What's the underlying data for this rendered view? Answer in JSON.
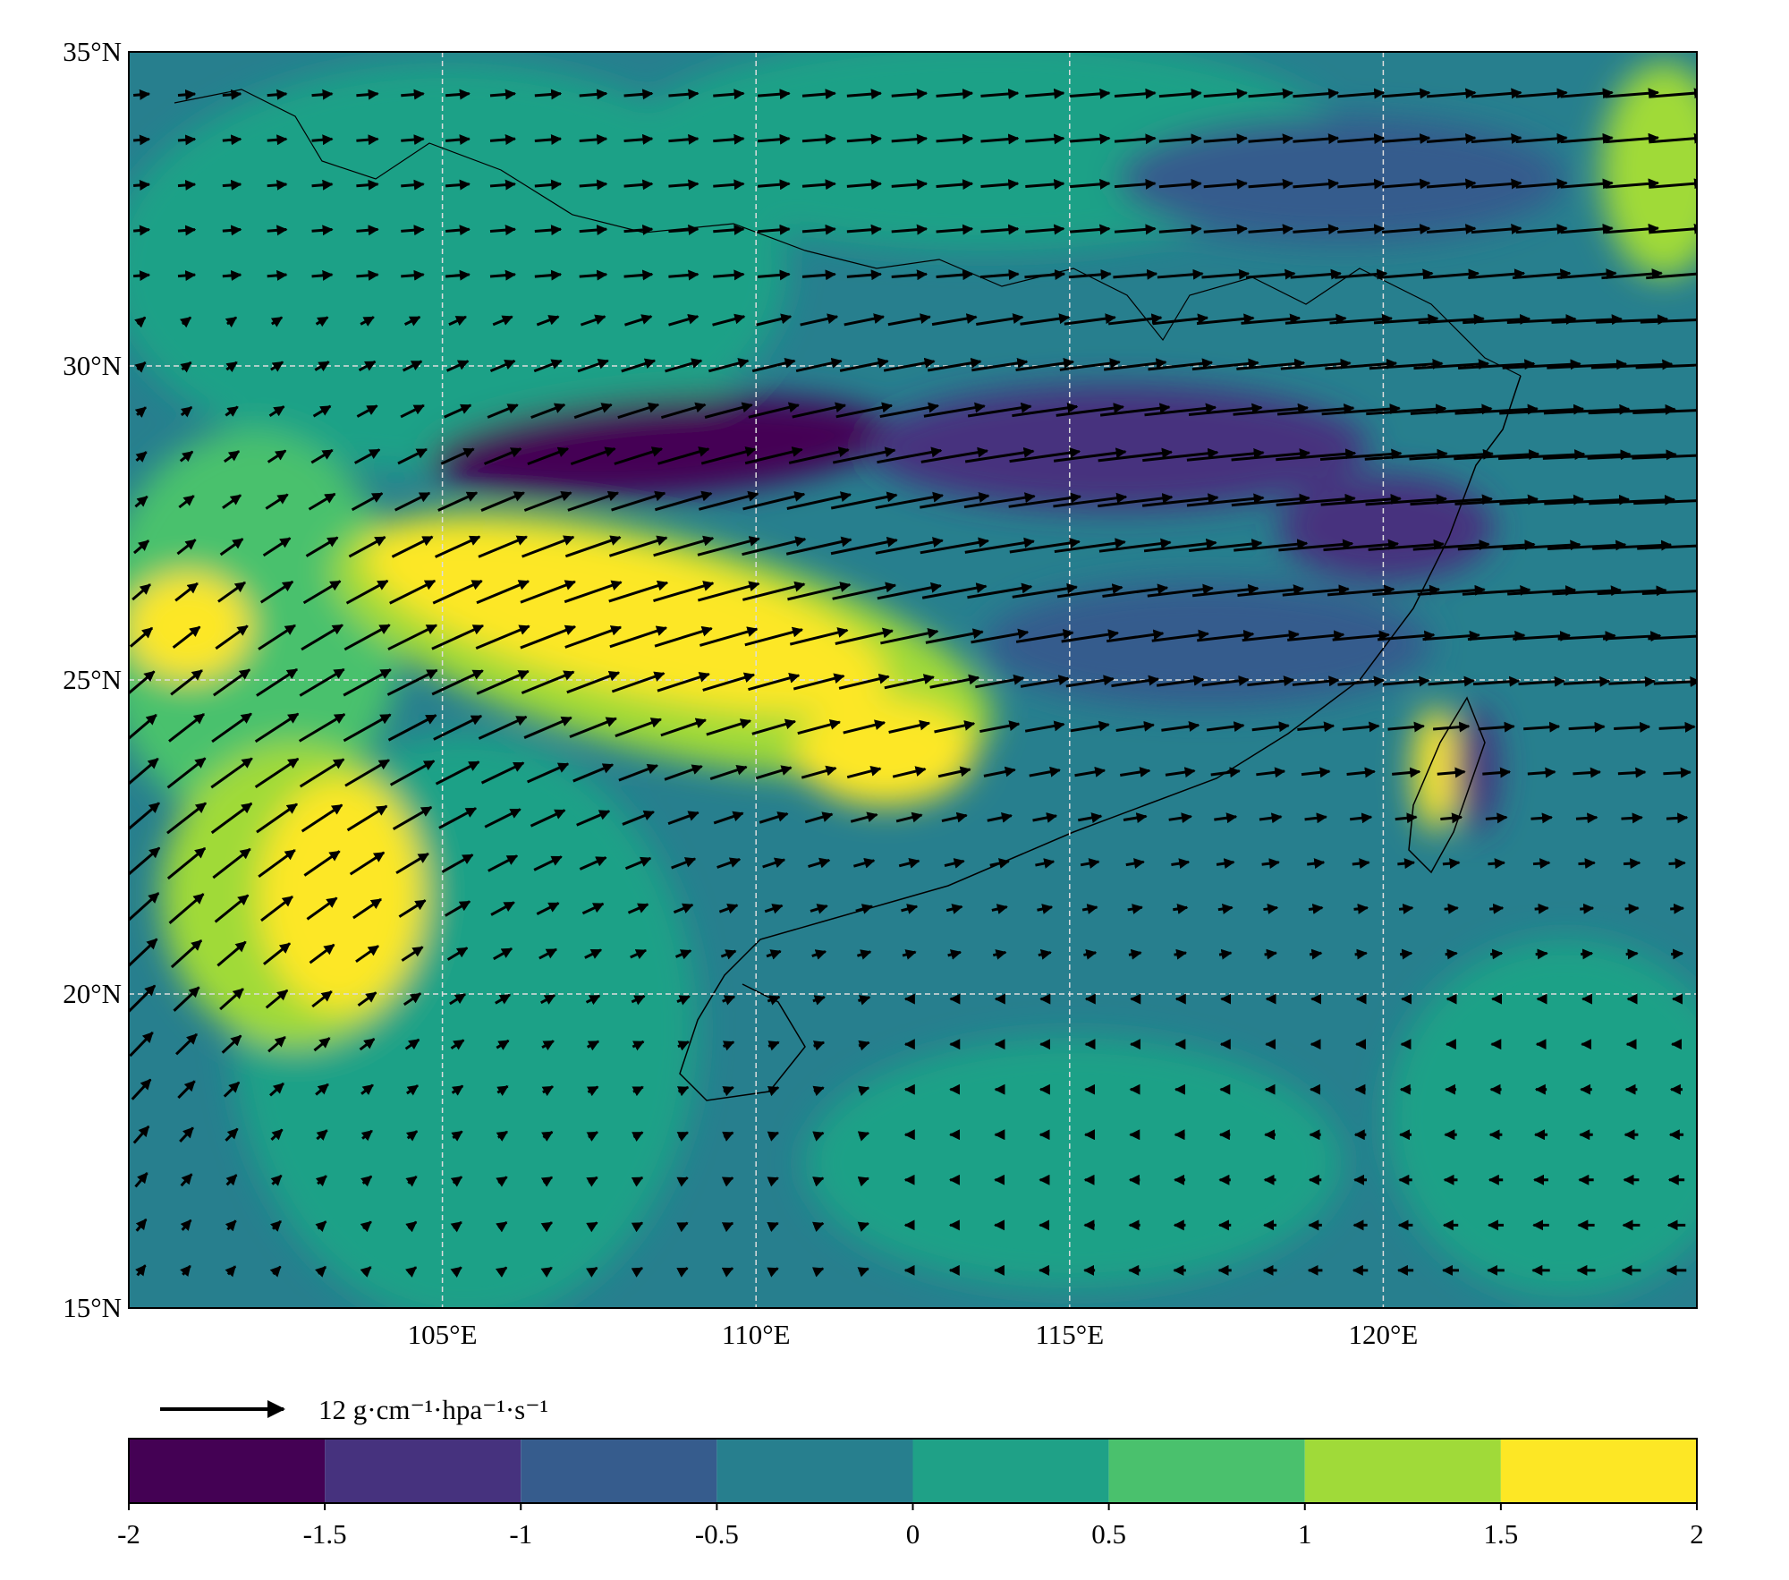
{
  "map": {
    "lonlim": [
      100,
      125
    ],
    "latlim": [
      15,
      35
    ],
    "lon_ticks": [
      {
        "value": 105,
        "label": "105°E"
      },
      {
        "value": 110,
        "label": "110°E"
      },
      {
        "value": 115,
        "label": "115°E"
      },
      {
        "value": 120,
        "label": "120°E"
      }
    ],
    "lat_ticks": [
      {
        "value": 15,
        "label": "15°N"
      },
      {
        "value": 20,
        "label": "20°N"
      },
      {
        "value": 25,
        "label": "25°N"
      },
      {
        "value": 30,
        "label": "30°N"
      },
      {
        "value": 35,
        "label": "35°N"
      }
    ],
    "grid": true,
    "reference_vector": {
      "label": "12 g·cm⁻¹·hpa⁻¹·s⁻¹"
    },
    "colorbar": {
      "lim": [
        -2,
        2
      ],
      "ticks": [
        -2,
        -1.5,
        -1,
        -0.5,
        0,
        0.5,
        1,
        1.5,
        2
      ],
      "colors": [
        "#440154",
        "#46327e",
        "#365c8d",
        "#277f8e",
        "#1fa187",
        "#4ac16d",
        "#a0da39",
        "#fde725"
      ]
    }
  }
}
